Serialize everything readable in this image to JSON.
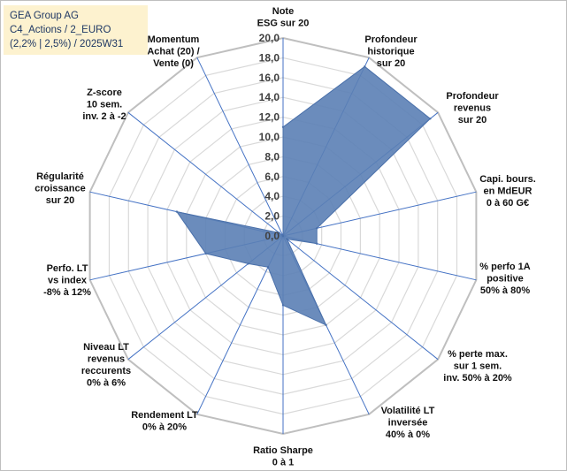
{
  "title_lines": [
    "GEA Group AG",
    "C4_Actions / 2_EURO",
    "(2,2% | 2,5%) / 2025W31"
  ],
  "colors": {
    "series_fill": "#5b7fb5",
    "series_stroke": "#4a70aa",
    "spokes": "#4472c4",
    "grid": "#d9d9d9",
    "title_bg": "#fdf2cf"
  },
  "chart_data": {
    "type": "radar",
    "rmax": 20,
    "ticks": [
      "0,0",
      "2,0",
      "4,0",
      "6,0",
      "8,0",
      "10,0",
      "12,0",
      "14,0",
      "16,0",
      "18,0",
      "20,0"
    ],
    "categories": [
      [
        "Note",
        "ESG sur 20"
      ],
      [
        "Profondeur",
        "historique",
        "sur 20"
      ],
      [
        "Profondeur",
        "revenus",
        "sur 20"
      ],
      [
        "Capi. bours.",
        "en MdEUR",
        "0 à 60 G€"
      ],
      [
        "% perfo 1A",
        "positive",
        "50% à 80%"
      ],
      [
        "% perte max.",
        "sur 1 sem.",
        "inv. 50% à 20%"
      ],
      [
        "Volatilité LT",
        "inversée",
        "40% à 0%"
      ],
      [
        "Ratio Sharpe",
        "0 à 1"
      ],
      [
        "Rendement LT",
        "0% à 20%"
      ],
      [
        "Niveau LT",
        "revenus",
        "reccurents",
        "0% à 6%"
      ],
      [
        "Perfo. LT",
        "vs index",
        "-8% à 12%"
      ],
      [
        "Régularité",
        "croissance",
        "sur 20"
      ],
      [
        "Z-score",
        "10 sem.",
        "inv. 2 à -2"
      ],
      [
        "Momentum",
        "Achat (20) /",
        "Vente (0)"
      ]
    ],
    "values": [
      11,
      19,
      19,
      3.5,
      3.5,
      0.5,
      10,
      7,
      3.5,
      4.5,
      8,
      11,
      0.5,
      0
    ],
    "grid": true,
    "legend": "none"
  }
}
